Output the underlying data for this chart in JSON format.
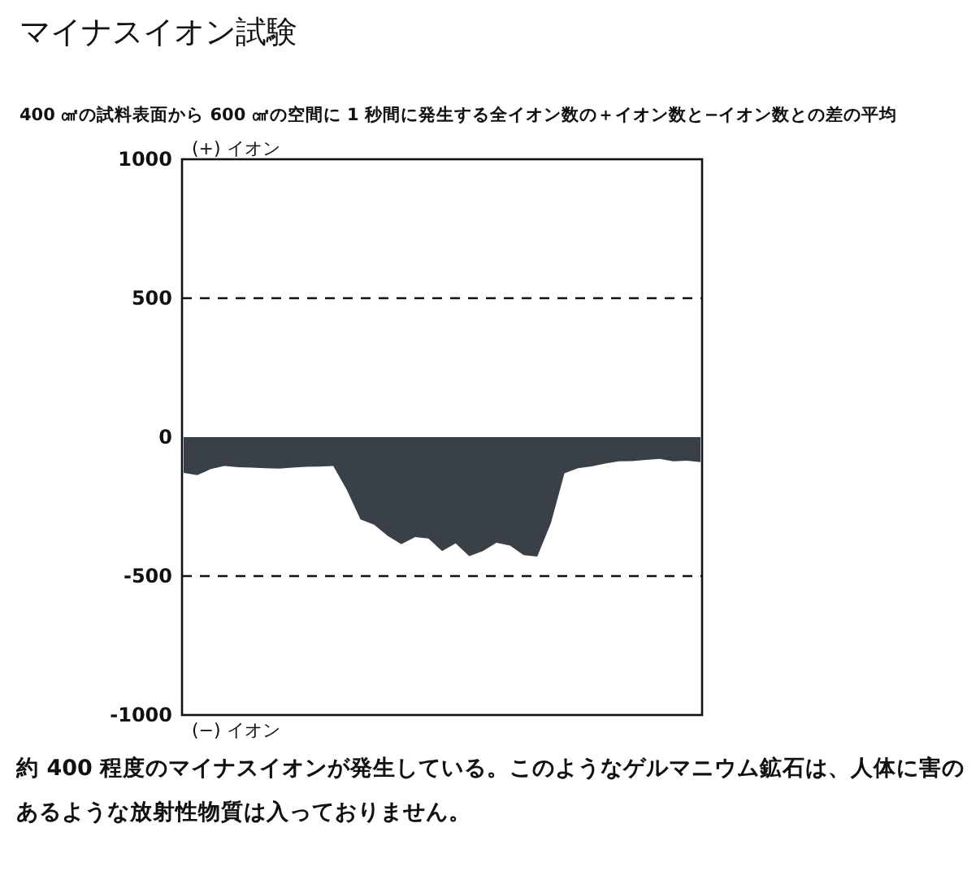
{
  "chart_data": {
    "type": "area",
    "title": "マイナスイオン試験",
    "subtitle": "400 ㎠の試料表面から 600 ㎠の空間に 1 秒間に発生する全イオン数の＋イオン数と−イオン数との差の平均",
    "categories": [
      null,
      null,
      null,
      null,
      null,
      null,
      null,
      null,
      null,
      null,
      null,
      null,
      null,
      null,
      null,
      null,
      null,
      null,
      null,
      null,
      null,
      null,
      null,
      null,
      null,
      null,
      null,
      null,
      null,
      null,
      null,
      null,
      null,
      null,
      null,
      null,
      null,
      null,
      null
    ],
    "series": [
      {
        "color": "#3a4048",
        "values": [
          -129,
          -137,
          -115,
          -104,
          -108,
          -110,
          -112,
          -113,
          -110,
          -107,
          -106,
          -104,
          -190,
          -296,
          -315,
          -355,
          -385,
          -360,
          -365,
          -410,
          -382,
          -428,
          -410,
          -380,
          -390,
          -425,
          -430,
          -310,
          -130,
          -112,
          -105,
          -95,
          -87,
          -86,
          -82,
          -78,
          -87,
          -85,
          -90
        ]
      }
    ],
    "ylim": [
      -1000,
      1000
    ],
    "yticks": [
      -1000,
      -500,
      0,
      500,
      1000
    ],
    "ref_lines": [
      {
        "axis": "y",
        "value": 500,
        "line_style": "dashed"
      },
      {
        "axis": "y",
        "value": -500,
        "line_style": "dashed"
      }
    ],
    "annotations": [
      "(+) イオン",
      "(−) イオン",
      "約 400 程度のマイナスイオンが発生している。このようなゲルマニウム鉱石は、人体に害のあるような放射性物質は入っておりません。"
    ],
    "grid": false
  }
}
